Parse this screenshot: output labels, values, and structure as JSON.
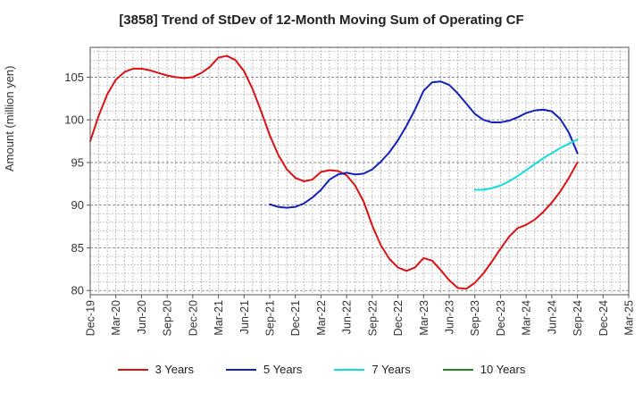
{
  "chart_data": {
    "type": "line",
    "title": "[3858]  Trend of StDev of 12-Month Moving Sum of Operating CF",
    "ylabel": "Amount (million yen)",
    "xlabel": "",
    "ylim": [
      79.5,
      108.5
    ],
    "yticks": [
      80,
      85,
      90,
      95,
      100,
      105
    ],
    "x_tick_labels": [
      "Dec-19",
      "Mar-20",
      "Jun-20",
      "Sep-20",
      "Dec-20",
      "Mar-21",
      "Jun-21",
      "Sep-21",
      "Dec-21",
      "Mar-22",
      "Jun-22",
      "Sep-22",
      "Dec-22",
      "Mar-23",
      "Jun-23",
      "Sep-23",
      "Dec-23",
      "Mar-24",
      "Jun-24",
      "Sep-24",
      "Dec-24",
      "Mar-25"
    ],
    "x_start": "2019-12",
    "grid": true,
    "legend_position": "bottom",
    "series": [
      {
        "name": "3 Years",
        "color": "#dd1111",
        "x": [
          "2019-12",
          "2020-01",
          "2020-02",
          "2020-03",
          "2020-04",
          "2020-05",
          "2020-06",
          "2020-07",
          "2020-08",
          "2020-09",
          "2020-10",
          "2020-11",
          "2020-12",
          "2021-01",
          "2021-02",
          "2021-03",
          "2021-04",
          "2021-05",
          "2021-06",
          "2021-07",
          "2021-08",
          "2021-09",
          "2021-10",
          "2021-11",
          "2021-12",
          "2022-01",
          "2022-02",
          "2022-03",
          "2022-04",
          "2022-05",
          "2022-06",
          "2022-07",
          "2022-08",
          "2022-09",
          "2022-10",
          "2022-11",
          "2022-12",
          "2023-01",
          "2023-02",
          "2023-03",
          "2023-04",
          "2023-05",
          "2023-06",
          "2023-07",
          "2023-08",
          "2023-09",
          "2023-10",
          "2023-11",
          "2023-12",
          "2024-01",
          "2024-02",
          "2024-03",
          "2024-04",
          "2024-05",
          "2024-06",
          "2024-07",
          "2024-08",
          "2024-09"
        ],
        "values": [
          97.5,
          100.5,
          103.0,
          104.7,
          105.6,
          106.0,
          106.0,
          105.8,
          105.5,
          105.2,
          105.0,
          104.9,
          105.0,
          105.5,
          106.2,
          107.3,
          107.5,
          107.0,
          105.7,
          103.6,
          101.0,
          98.2,
          95.9,
          94.2,
          93.2,
          92.8,
          93.0,
          93.9,
          94.1,
          94.0,
          93.5,
          92.3,
          90.4,
          87.6,
          85.3,
          83.7,
          82.7,
          82.3,
          82.7,
          83.8,
          83.5,
          82.4,
          81.2,
          80.3,
          80.2,
          80.9,
          82.0,
          83.4,
          84.9,
          86.3,
          87.3,
          87.7,
          88.3,
          89.2,
          90.3,
          91.6,
          93.2,
          95.0
        ]
      },
      {
        "name": "5 Years",
        "color": "#1122bb",
        "x": [
          "2021-09",
          "2021-10",
          "2021-11",
          "2021-12",
          "2022-01",
          "2022-02",
          "2022-03",
          "2022-04",
          "2022-05",
          "2022-06",
          "2022-07",
          "2022-08",
          "2022-09",
          "2022-10",
          "2022-11",
          "2022-12",
          "2023-01",
          "2023-02",
          "2023-03",
          "2023-04",
          "2023-05",
          "2023-06",
          "2023-07",
          "2023-08",
          "2023-09",
          "2023-10",
          "2023-11",
          "2023-12",
          "2024-01",
          "2024-02",
          "2024-03",
          "2024-04",
          "2024-05",
          "2024-06",
          "2024-07",
          "2024-08",
          "2024-09"
        ],
        "values": [
          90.1,
          89.8,
          89.7,
          89.8,
          90.2,
          90.9,
          91.8,
          93.0,
          93.6,
          93.8,
          93.6,
          93.7,
          94.2,
          95.1,
          96.2,
          97.6,
          99.3,
          101.2,
          103.4,
          104.4,
          104.5,
          104.1,
          103.1,
          101.9,
          100.7,
          100.0,
          99.7,
          99.7,
          99.9,
          100.3,
          100.8,
          101.1,
          101.2,
          101.0,
          100.1,
          98.5,
          96.1
        ]
      },
      {
        "name": "7 Years",
        "color": "#11dddd",
        "x": [
          "2023-09",
          "2023-10",
          "2023-11",
          "2023-12",
          "2024-01",
          "2024-02",
          "2024-03",
          "2024-04",
          "2024-05",
          "2024-06",
          "2024-07",
          "2024-08",
          "2024-09"
        ],
        "values": [
          91.8,
          91.8,
          92.0,
          92.3,
          92.8,
          93.4,
          94.1,
          94.8,
          95.5,
          96.1,
          96.7,
          97.2,
          97.7
        ]
      },
      {
        "name": "10 Years",
        "color": "#228822",
        "x": [],
        "values": []
      }
    ]
  }
}
